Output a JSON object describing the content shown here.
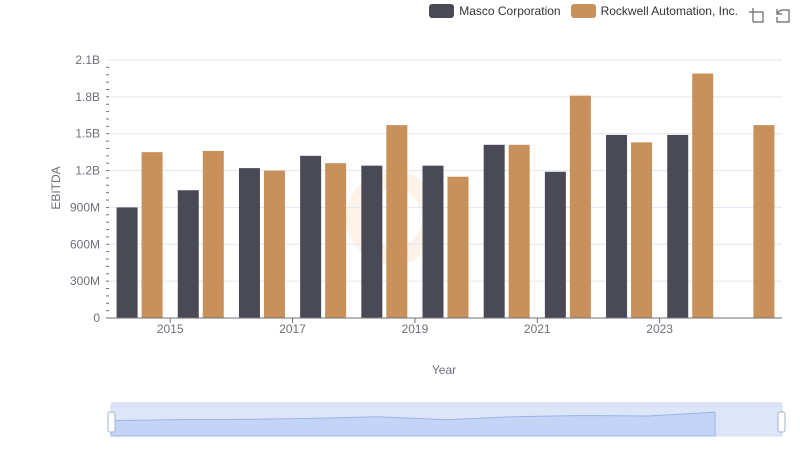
{
  "toolbox": {
    "zoom_icon": "zoom-icon",
    "restore_icon": "restore-icon"
  },
  "chart_data": {
    "type": "bar",
    "xlabel": "Year",
    "ylabel": "EBITDA",
    "x": [
      2014,
      2015,
      2016,
      2017,
      2018,
      2019,
      2020,
      2021,
      2022,
      2023,
      2024
    ],
    "x_tick_labels": [
      "2015",
      "2017",
      "2019",
      "2021",
      "2023"
    ],
    "y_tick_labels": [
      "0",
      "300M",
      "600M",
      "900M",
      "1.2B",
      "1.5B",
      "1.8B",
      "2.1B"
    ],
    "ylim": [
      0,
      2100000000
    ],
    "grid": true,
    "legend_position": "top-right",
    "series": [
      {
        "name": "Masco Corporation",
        "color": "#4a4a56",
        "values": [
          900000000,
          1040000000,
          1220000000,
          1320000000,
          1240000000,
          1240000000,
          1410000000,
          1190000000,
          1490000000,
          1490000000,
          null
        ]
      },
      {
        "name": "Rockwell Automation, Inc.",
        "color": "#c8915c",
        "values": [
          1350000000,
          1360000000,
          1200000000,
          1260000000,
          1570000000,
          1150000000,
          1410000000,
          1810000000,
          1430000000,
          1990000000,
          1570000000
        ]
      }
    ]
  }
}
